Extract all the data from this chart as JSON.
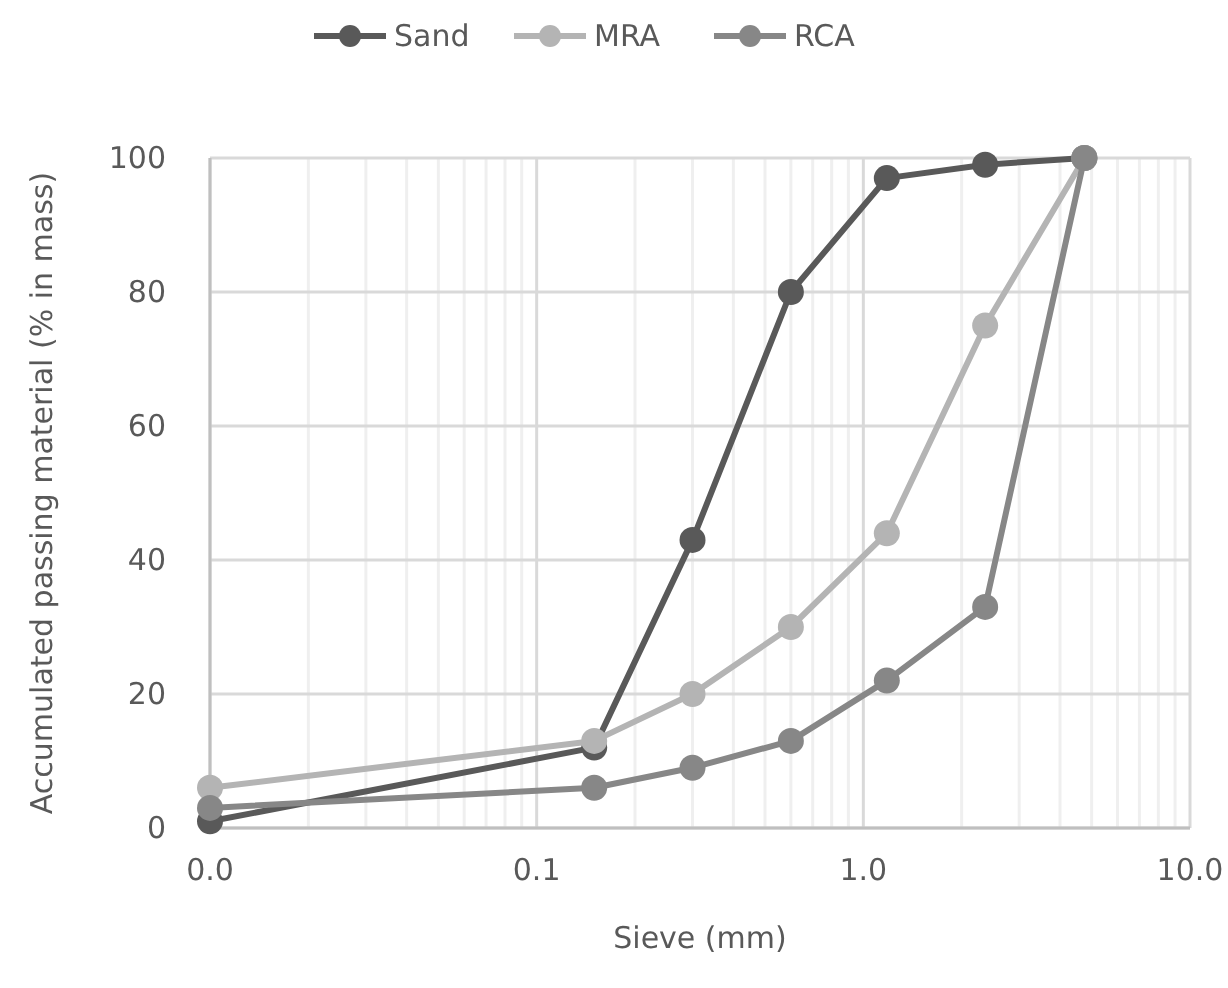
{
  "chart_data": {
    "type": "line",
    "xlabel": "Sieve (mm)",
    "ylabel": "Accumulated passing material (% in mass)",
    "x": [
      0.01,
      0.15,
      0.3,
      0.6,
      1.18,
      2.36,
      4.75
    ],
    "series": [
      {
        "name": "Sand",
        "color": "#595959",
        "values": [
          1,
          12,
          43,
          80,
          97,
          99,
          100
        ]
      },
      {
        "name": "MRA",
        "color": "#b4b4b4",
        "values": [
          6,
          13,
          20,
          30,
          44,
          75,
          100
        ]
      },
      {
        "name": "RCA",
        "color": "#878787",
        "values": [
          3,
          6,
          9,
          13,
          22,
          33,
          100
        ]
      }
    ],
    "log": "x",
    "xlim": [
      0.01,
      10
    ],
    "xticks": [
      {
        "value": 0.01,
        "label": "0.0"
      },
      {
        "value": 0.1,
        "label": "0.1"
      },
      {
        "value": 1,
        "label": "1.0"
      },
      {
        "value": 10,
        "label": "10.0"
      }
    ],
    "ylim": [
      0,
      100
    ],
    "yticks": [
      0,
      20,
      40,
      60,
      80,
      100
    ],
    "grid": true,
    "legend": "top",
    "marker": "circle",
    "line_style": "solid"
  }
}
